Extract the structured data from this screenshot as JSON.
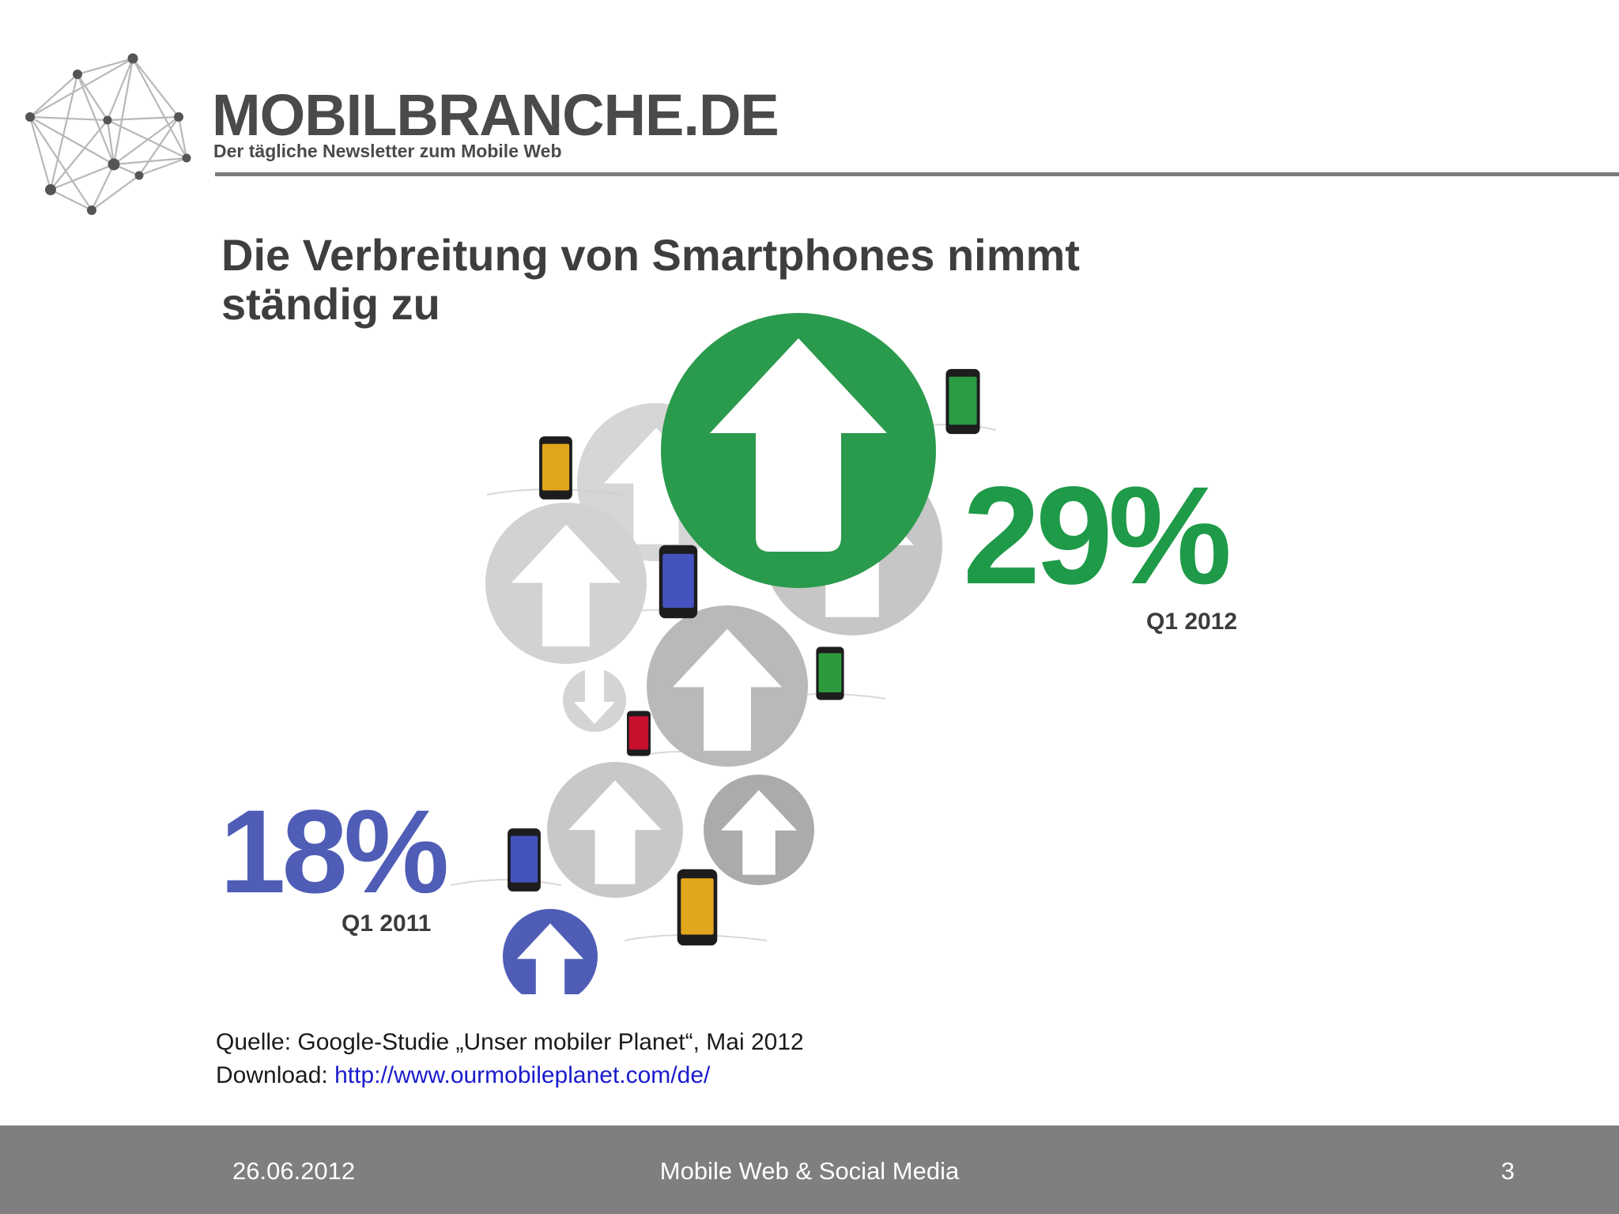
{
  "header": {
    "brand_name": "MOBILBRANCHE.DE",
    "tagline": "Der tägliche Newsletter zum Mobile Web",
    "logo_icon": "network-nodes-icon"
  },
  "slide": {
    "title": "Die Verbreitung von Smartphones nimmt ständig zu"
  },
  "infographic": {
    "stat_2012": {
      "value": "29%",
      "label": "Q1 2012",
      "color": "#1e9a48"
    },
    "stat_2011": {
      "value": "18%",
      "label": "Q1 2011",
      "color": "#4f5db6"
    },
    "icons": [
      "arrow-up-circle-icon",
      "arrow-down-circle-icon",
      "smartphone-icon"
    ]
  },
  "source": {
    "line1": "Quelle: Google-Studie „Unser mobiler Planet“, Mai 2012",
    "download_label": "Download: ",
    "download_url": "http://www.ourmobileplanet.com/de/"
  },
  "footer": {
    "date": "26.06.2012",
    "title": "Mobile Web & Social Media",
    "page": "3"
  }
}
